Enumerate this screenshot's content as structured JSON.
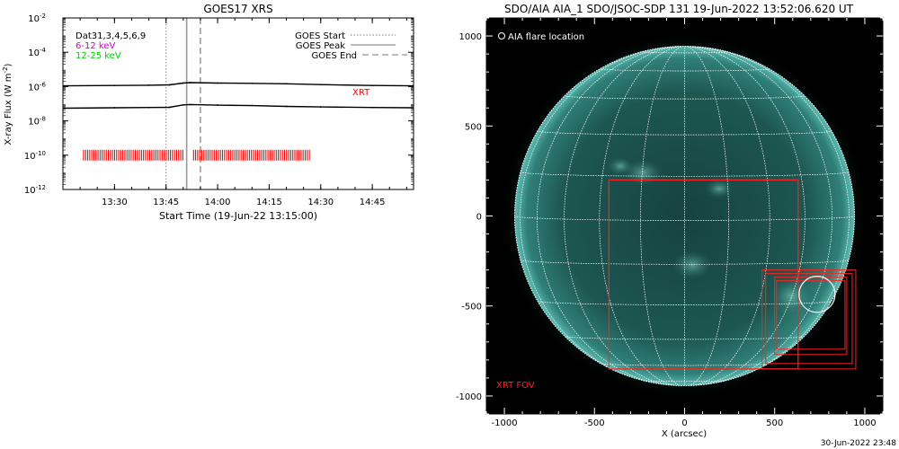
{
  "footer_timestamp": "30-Jun-2022 23:48",
  "chart_data": [
    {
      "type": "line",
      "title": "GOES17 XRS",
      "xlabel": "Start Time (19-Jun-22 13:15:00)",
      "ylabel_prefix": "X-ray Flux (W m",
      "ylabel_exp": "-2",
      "ylabel_suffix": ")",
      "yscale": "log",
      "ylim": [
        1e-12,
        0.01
      ],
      "xlim": [
        "13:15",
        "14:57"
      ],
      "x_ticks": [
        "13:30",
        "13:45",
        "14:00",
        "14:15",
        "14:30",
        "14:45"
      ],
      "y_ticks": [
        {
          "base": "10",
          "exp": "-12",
          "value": 1e-12
        },
        {
          "base": "10",
          "exp": "-10",
          "value": 1e-10
        },
        {
          "base": "10",
          "exp": "-8",
          "value": 1e-08
        },
        {
          "base": "10",
          "exp": "-6",
          "value": 1e-06
        },
        {
          "base": "10",
          "exp": "-4",
          "value": 0.0001
        },
        {
          "base": "10",
          "exp": "-2",
          "value": 0.01
        }
      ],
      "legend_left": [
        {
          "label": "Dat31,3,4,5,6,9",
          "color": "#000000"
        },
        {
          "label": "6-12 keV",
          "color": "#cc00cc"
        },
        {
          "label": "12-25 keV",
          "color": "#00cc00"
        }
      ],
      "legend_right": [
        {
          "label": "GOES Start",
          "style": "dotted"
        },
        {
          "label": "GOES Peak",
          "style": "solid"
        },
        {
          "label": "GOES End",
          "style": "dashed"
        }
      ],
      "event_lines": {
        "start": "13:45",
        "peak": "13:51",
        "end": "13:55"
      },
      "series": [
        {
          "color": "#000000",
          "x": [
            "13:15",
            "13:30",
            "13:40",
            "13:46",
            "13:50",
            "13:52",
            "14:00",
            "14:10",
            "14:20",
            "14:30",
            "14:45",
            "14:57"
          ],
          "y": [
            1.1e-06,
            1.15e-06,
            1.2e-06,
            1.25e-06,
            1.6e-06,
            1.7e-06,
            1.6e-06,
            1.55e-06,
            1.45e-06,
            1.3e-06,
            1.15e-06,
            1.1e-06
          ]
        },
        {
          "color": "#000000",
          "x": [
            "13:15",
            "13:30",
            "13:40",
            "13:46",
            "13:50",
            "13:52",
            "14:00",
            "14:10",
            "14:20",
            "14:30",
            "14:45",
            "14:57"
          ],
          "y": [
            5.5e-08,
            5.8e-08,
            6e-08,
            6.2e-08,
            8.5e-08,
            9e-08,
            8.2e-08,
            7.8e-08,
            7e-08,
            6.5e-08,
            6e-08,
            5.8e-08
          ]
        }
      ],
      "xrt_label": "XRT",
      "xrt_color": "#ff0000",
      "xrt_y": 1e-10,
      "xrt_intervals": [
        [
          "13:21",
          "13:50"
        ],
        [
          "13:53",
          "14:27"
        ]
      ]
    },
    {
      "type": "image",
      "title": "SDO/AIA AIA_1 SDO/JSOC-SDP 131 19-Jun-2022 13:52:06.620 UT",
      "xlabel": "X (arcsec)",
      "xlim": [
        -1100,
        1100
      ],
      "ylim": [
        -1100,
        1100
      ],
      "x_ticks": [
        -1000,
        -500,
        0,
        500,
        1000
      ],
      "y_ticks": [
        -1000,
        -500,
        0,
        500,
        1000
      ],
      "solar_radius_arcsec": 945,
      "grid": true,
      "legend_flare": "AIA flare location",
      "flare_location": [
        735,
        -435
      ],
      "flare_radius_arcsec": 100,
      "xrt_fov_label": "XRT FOV",
      "xrt_fov": [
        -420,
        -850,
        1050,
        1050
      ],
      "xrt_boxes": [
        [
          430,
          -850,
          950,
          -300
        ],
        [
          450,
          -820,
          930,
          -320
        ],
        [
          500,
          -770,
          900,
          -340
        ],
        [
          510,
          -740,
          890,
          -360
        ]
      ],
      "colors": {
        "disk": "#1e5a55",
        "limb": "#4ea89f",
        "grid": "#ffffff",
        "xrt": "#ff2222",
        "background": "#000000"
      }
    }
  ]
}
